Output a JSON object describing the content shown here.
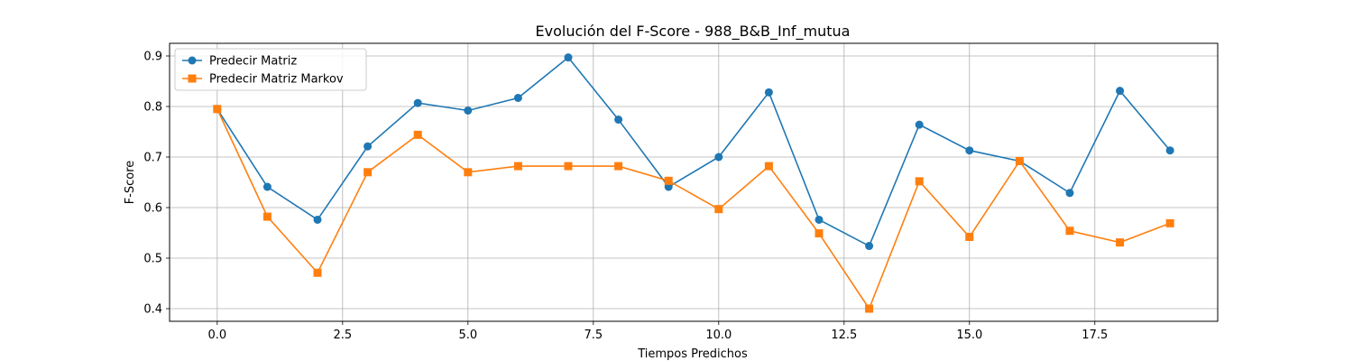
{
  "chart_data": {
    "type": "line",
    "title": "Evolución del F-Score - 988_B&B_Inf_mutua",
    "xlabel": "Tiempos Predichos",
    "ylabel": "F-Score",
    "xlim": [
      -0.95,
      19.95
    ],
    "ylim": [
      0.375,
      0.925
    ],
    "xticks": [
      0,
      2.5,
      5,
      7.5,
      10,
      12.5,
      15,
      17.5
    ],
    "xtick_labels": [
      "0.0",
      "2.5",
      "5.0",
      "7.5",
      "10.0",
      "12.5",
      "15.0",
      "17.5"
    ],
    "yticks": [
      0.4,
      0.5,
      0.6,
      0.7,
      0.8,
      0.9
    ],
    "ytick_labels": [
      "0.4",
      "0.5",
      "0.6",
      "0.7",
      "0.8",
      "0.9"
    ],
    "grid": true,
    "legend_position": "upper left",
    "x": [
      0,
      1,
      2,
      3,
      4,
      5,
      6,
      7,
      8,
      9,
      10,
      11,
      12,
      13,
      14,
      15,
      16,
      17,
      18,
      19
    ],
    "series": [
      {
        "name": "Predecir Matriz",
        "color": "#1f77b4",
        "marker": "circle",
        "values": [
          0.795,
          0.641,
          0.576,
          0.721,
          0.807,
          0.792,
          0.817,
          0.897,
          0.774,
          0.641,
          0.7,
          0.828,
          0.576,
          0.524,
          0.764,
          0.713,
          0.692,
          0.629,
          0.831,
          0.713
        ]
      },
      {
        "name": "Predecir Matriz Markov",
        "color": "#ff7f0e",
        "marker": "square",
        "values": [
          0.795,
          0.582,
          0.471,
          0.67,
          0.744,
          0.67,
          0.682,
          0.682,
          0.682,
          0.653,
          0.597,
          0.682,
          0.549,
          0.4,
          0.652,
          0.542,
          0.692,
          0.554,
          0.531,
          0.569
        ]
      }
    ]
  }
}
